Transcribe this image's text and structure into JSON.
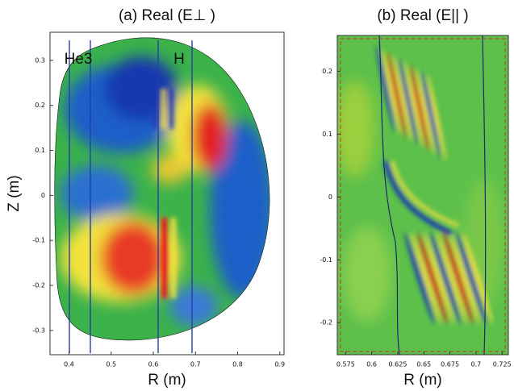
{
  "chart_data": [
    {
      "type": "heatmap",
      "title": "(a) Real (E⊥ )",
      "xlabel": "R (m)",
      "ylabel": "Z (m)",
      "xlim": [
        0.355,
        0.91
      ],
      "ylim": [
        -0.354,
        0.3625
      ],
      "xticks": [
        0.4,
        0.5,
        0.6,
        0.7,
        0.8,
        0.9
      ],
      "yticks": [
        -0.3,
        -0.2,
        -0.1,
        0,
        0.1,
        0.2,
        0.3
      ],
      "annotations": [
        "He3",
        "H"
      ]
    },
    {
      "type": "heatmap",
      "title": "(b) Real (E|| )",
      "xlabel": "R (m)",
      "xlim": [
        0.567,
        0.731
      ],
      "ylim": [
        -0.251,
        0.257
      ],
      "xticks": [
        0.575,
        0.6,
        0.625,
        0.65,
        0.675,
        0.7,
        0.725
      ],
      "yticks": [
        -0.2,
        -0.1,
        0,
        0.1,
        0.2
      ]
    }
  ]
}
